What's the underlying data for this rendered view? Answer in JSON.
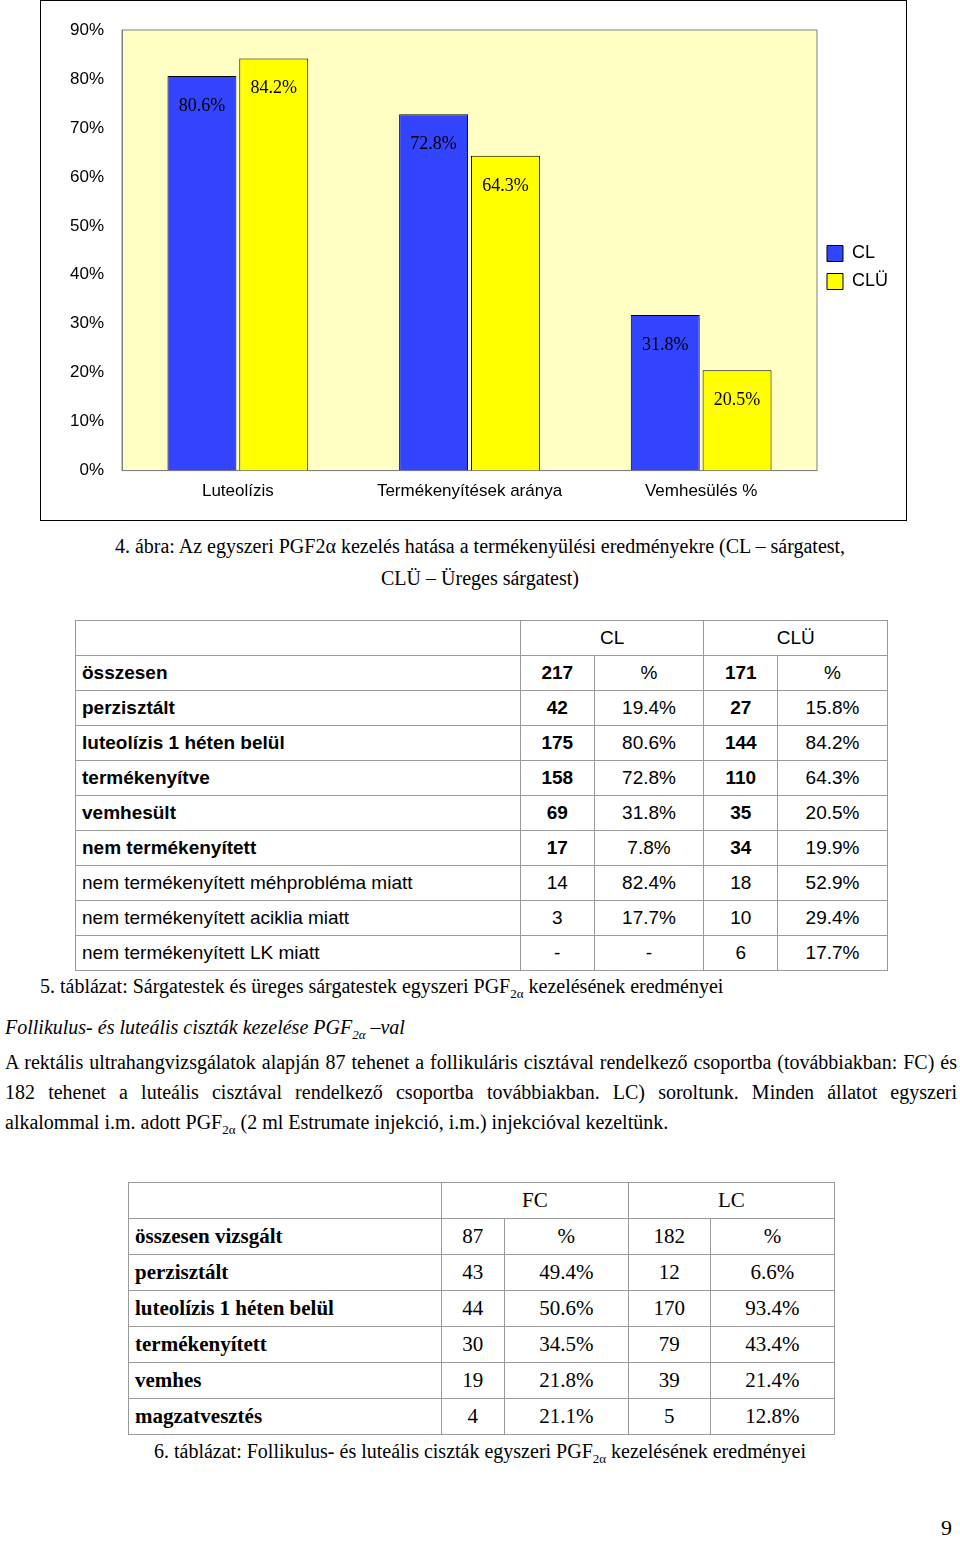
{
  "chart_data": {
    "type": "bar",
    "categories": [
      "Luteolízis",
      "Termékenyítések aránya",
      "Vemhesülés %"
    ],
    "series": [
      {
        "name": "CL",
        "color": "#3344ff",
        "values": [
          80.6,
          72.8,
          31.8
        ],
        "value_labels": [
          "80.6%",
          "72.8%",
          "31.8%"
        ]
      },
      {
        "name": "CLÜ",
        "color": "#ffff00",
        "values": [
          84.2,
          64.3,
          20.5
        ],
        "value_labels": [
          "84.2%",
          "64.3%",
          "20.5%"
        ]
      }
    ],
    "ylim": [
      0,
      90
    ],
    "yticks": [
      {
        "value": 0,
        "label": "0%"
      },
      {
        "value": 10,
        "label": "10%"
      },
      {
        "value": 20,
        "label": "20%"
      },
      {
        "value": 30,
        "label": "30%"
      },
      {
        "value": 40,
        "label": "40%"
      },
      {
        "value": 50,
        "label": "50%"
      },
      {
        "value": 60,
        "label": "60%"
      },
      {
        "value": 70,
        "label": "70%"
      },
      {
        "value": 80,
        "label": "80%"
      },
      {
        "value": 90,
        "label": "90%"
      }
    ],
    "grid": false,
    "legend": "right",
    "data_labels": true
  },
  "figure_caption": [
    "4. ábra: Az egyszeri PGF2α kezelés hatása a termékenyülési eredményekre (CL – sárgatest,",
    "CLÜ – Üreges sárgatest)"
  ],
  "table5": {
    "columns": [
      "CL",
      "CLÜ"
    ],
    "rows": [
      [
        "összesen",
        "217",
        "%",
        "171",
        "%"
      ],
      [
        "perzisztált",
        "42",
        "19.4%",
        "27",
        "15.8%"
      ],
      [
        "luteolízis 1 héten belül",
        "175",
        "80.6%",
        "144",
        "84.2%"
      ],
      [
        "termékenyítve",
        "158",
        "72.8%",
        "110",
        "64.3%"
      ],
      [
        "vemhesült",
        "69",
        "31.8%",
        "35",
        "20.5%"
      ],
      [
        "nem termékenyített",
        "17",
        "7.8%",
        "34",
        "19.9%"
      ],
      [
        "nem termékenyített méhprobléma miatt",
        "14",
        "82.4%",
        "18",
        "52.9%"
      ],
      [
        "nem termékenyített aciklia miatt",
        "3",
        "17.7%",
        "10",
        "29.4%"
      ],
      [
        "nem termékenyített LK miatt",
        "-",
        "-",
        "6",
        "17.7%"
      ]
    ],
    "caption": [
      {
        "text": "5. táblázat: Sárgatestek és üreges sárgatestek egyszeri PGF"
      },
      {
        "sub": "2α"
      },
      {
        "text": " kezelésének eredményei"
      }
    ]
  },
  "heading": [
    {
      "text": "Follikulus- és luteális ciszták kezelése PGF"
    },
    {
      "sub": "2α"
    },
    {
      "text": " –val"
    }
  ],
  "paragraph": [
    {
      "text": "A rektális ultrahangvizsgálatok alapján 87 tehenet a follikuláris cisztával rendelkező csoportba (továbbiakban: FC) és 182 tehenet a luteális cisztával rendelkező csoportba továbbiakban. LC) soroltunk. Minden állatot egyszeri alkalommal i.m. adott PGF"
    },
    {
      "sub": "2α"
    },
    {
      "text": " (2 ml Estrumate injekció, i.m.) injekcióval kezeltünk."
    }
  ],
  "table6": {
    "columns": [
      "FC",
      "LC"
    ],
    "rows": [
      [
        "összesen vizsgált",
        "87",
        "%",
        "182",
        "%"
      ],
      [
        "perzisztált",
        "43",
        "49.4%",
        "12",
        "6.6%"
      ],
      [
        "luteolízis 1 héten belül",
        "44",
        "50.6%",
        "170",
        "93.4%"
      ],
      [
        "termékenyített",
        "30",
        "34.5%",
        "79",
        "43.4%"
      ],
      [
        "vemhes",
        "19",
        "21.8%",
        "39",
        "21.4%"
      ],
      [
        "magzatvesztés",
        "4",
        "21.1%",
        "5",
        "12.8%"
      ]
    ],
    "caption": [
      {
        "text": "6. táblázat: Follikulus- és luteális ciszták egyszeri PGF"
      },
      {
        "sub": "2α"
      },
      {
        "text": " kezelésének eredményei"
      }
    ]
  },
  "page_number": "9"
}
